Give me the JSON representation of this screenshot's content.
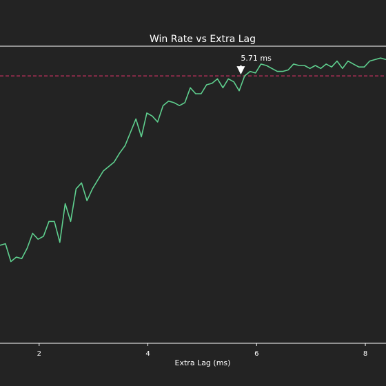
{
  "chart_data": {
    "type": "line",
    "title": "Win Rate vs Extra Lag",
    "xlabel": "Extra Lag (ms)",
    "ylabel": "",
    "xlim": [
      1.28,
      8.38
    ],
    "ylim": [
      0.0,
      1.0
    ],
    "x_ticks": [
      2,
      4,
      6,
      8
    ],
    "grid": false,
    "legend": "none",
    "series": [
      {
        "color": "#5fd08f",
        "x": [
          1.28,
          1.38,
          1.48,
          1.58,
          1.68,
          1.78,
          1.88,
          1.98,
          2.08,
          2.18,
          2.28,
          2.38,
          2.48,
          2.58,
          2.68,
          2.78,
          2.88,
          2.98,
          3.08,
          3.18,
          3.28,
          3.38,
          3.48,
          3.58,
          3.68,
          3.78,
          3.88,
          3.98,
          4.08,
          4.18,
          4.28,
          4.38,
          4.48,
          4.58,
          4.68,
          4.78,
          4.88,
          4.98,
          5.08,
          5.18,
          5.28,
          5.38,
          5.48,
          5.58,
          5.68,
          5.78,
          5.88,
          5.98,
          6.08,
          6.18,
          6.28,
          6.38,
          6.48,
          6.58,
          6.68,
          6.78,
          6.88,
          6.98,
          7.08,
          7.18,
          7.28,
          7.38,
          7.48,
          7.58,
          7.68,
          7.78,
          7.88,
          7.98,
          8.08,
          8.18,
          8.28,
          8.38
        ],
        "values": [
          0.33,
          0.335,
          0.275,
          0.29,
          0.285,
          0.32,
          0.37,
          0.35,
          0.36,
          0.41,
          0.41,
          0.34,
          0.47,
          0.41,
          0.52,
          0.54,
          0.48,
          0.52,
          0.55,
          0.58,
          0.595,
          0.61,
          0.64,
          0.665,
          0.71,
          0.755,
          0.695,
          0.775,
          0.765,
          0.745,
          0.8,
          0.815,
          0.81,
          0.8,
          0.81,
          0.86,
          0.84,
          0.84,
          0.87,
          0.875,
          0.89,
          0.86,
          0.89,
          0.88,
          0.85,
          0.9,
          0.915,
          0.91,
          0.94,
          0.935,
          0.925,
          0.915,
          0.915,
          0.92,
          0.94,
          0.935,
          0.935,
          0.925,
          0.935,
          0.925,
          0.94,
          0.93,
          0.95,
          0.925,
          0.95,
          0.94,
          0.93,
          0.93,
          0.95,
          0.955,
          0.96,
          0.955
        ]
      }
    ],
    "reference_line": {
      "y": 0.9,
      "color": "#c8305f",
      "style": "dashed"
    },
    "annotation": {
      "text": "5.71 ms",
      "x": 5.71
    }
  }
}
